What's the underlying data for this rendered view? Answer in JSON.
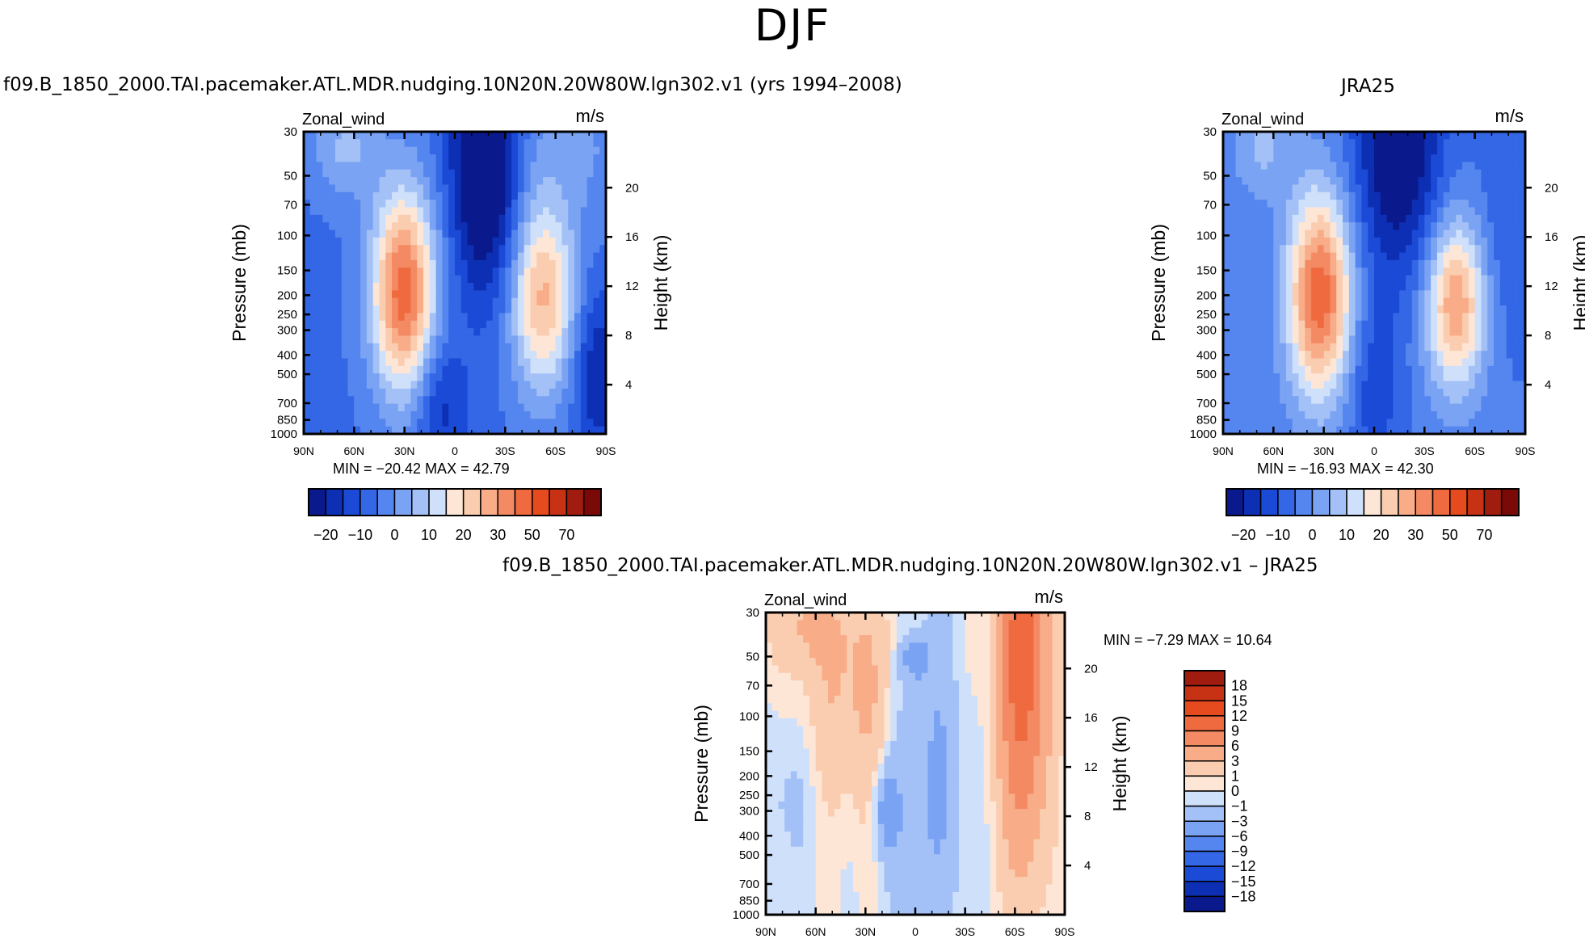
{
  "figure": {
    "suptitle": "DJF",
    "left_title": "f09.B_1850_2000.TAI.pacemaker.ATL.MDR.nudging.10N20N.20W80W.lgn302.v1 (yrs 1994–2008)",
    "right_title": "JRA25",
    "bottom_title": "f09.B_1850_2000.TAI.pacemaker.ATL.MDR.nudging.10N20N.20W80W.lgn302.v1 – JRA25"
  },
  "colors": {
    "full_levels": [
      "#0a1a8c",
      "#0d2fb4",
      "#1a4ad6",
      "#3367e6",
      "#5586ef",
      "#7aa3f3",
      "#a3c1f6",
      "#cfe0fb",
      "#fde6d6",
      "#fbcdb0",
      "#f8ac88",
      "#f48a63",
      "#ef6a3f",
      "#e64a1f",
      "#c83214",
      "#9f1c0e",
      "#7a0a08"
    ],
    "diff_levels": [
      "#0a1a8c",
      "#0d2fb4",
      "#1a4ad6",
      "#3367e6",
      "#5586ef",
      "#7aa3f3",
      "#a3c1f6",
      "#cfe0fb",
      "#fde6d6",
      "#fbcdb0",
      "#f8ac88",
      "#f48a63",
      "#ef6a3f",
      "#e64a1f",
      "#c83214",
      "#9f1c0e"
    ]
  },
  "chart_data": [
    {
      "type": "contour",
      "panel": "model",
      "variable_label": "Zonal_wind",
      "units_label": "m/s",
      "x_ticks": [
        "90N",
        "60N",
        "30N",
        "0",
        "30S",
        "60S",
        "90S"
      ],
      "x_values": [
        90,
        60,
        30,
        0,
        -30,
        -60,
        -90
      ],
      "pressure_ticks": [
        30,
        50,
        70,
        100,
        150,
        200,
        250,
        300,
        400,
        500,
        700,
        850,
        1000
      ],
      "pressure_range": [
        1000,
        30
      ],
      "height_ticks_km": [
        4,
        8,
        12,
        16,
        20
      ],
      "ylabel": "Pressure (mb)",
      "ylabel_right": "Height (km)",
      "min_label": "MIN = −20.42   MAX =   42.79",
      "min": -20.42,
      "max": 42.79,
      "colorbar_labels": [
        "−20",
        "−10",
        "0",
        "10",
        "20",
        "30",
        "50",
        "70"
      ],
      "jets": [
        {
          "lat": 30,
          "p": 200,
          "peak": 42.79
        },
        {
          "lat": -50,
          "p": 200,
          "peak": 31
        },
        {
          "lat": 15,
          "p": 30,
          "peak": -20.42
        }
      ]
    },
    {
      "type": "contour",
      "panel": "reanalysis",
      "variable_label": "Zonal_wind",
      "units_label": "m/s",
      "x_ticks": [
        "90N",
        "60N",
        "30N",
        "0",
        "30S",
        "60S",
        "90S"
      ],
      "pressure_ticks": [
        30,
        50,
        70,
        100,
        150,
        200,
        250,
        300,
        400,
        500,
        700,
        850,
        1000
      ],
      "height_ticks_km": [
        4,
        8,
        12,
        16,
        20
      ],
      "ylabel": "Pressure (mb)",
      "ylabel_right": "Height (km)",
      "min_label": "MIN = −16.93   MAX =   42.30",
      "min": -16.93,
      "max": 42.3,
      "colorbar_labels": [
        "−20",
        "−10",
        "0",
        "10",
        "20",
        "30",
        "50",
        "70"
      ]
    },
    {
      "type": "contour",
      "panel": "difference",
      "variable_label": "Zonal_wind",
      "units_label": "m/s",
      "x_ticks": [
        "90N",
        "60N",
        "30N",
        "0",
        "30S",
        "60S",
        "90S"
      ],
      "pressure_ticks": [
        30,
        50,
        70,
        100,
        150,
        200,
        250,
        300,
        400,
        500,
        700,
        850,
        1000
      ],
      "height_ticks_km": [
        4,
        8,
        12,
        16,
        20
      ],
      "ylabel": "Pressure (mb)",
      "ylabel_right": "Height (km)",
      "min_label": "MIN =    −7.29   MAX =   10.64",
      "min": -7.29,
      "max": 10.64,
      "colorbar_labels": [
        "18",
        "15",
        "12",
        "9",
        "6",
        "3",
        "1",
        "0",
        "−1",
        "−3",
        "−6",
        "−9",
        "−12",
        "−15",
        "−18"
      ]
    }
  ]
}
